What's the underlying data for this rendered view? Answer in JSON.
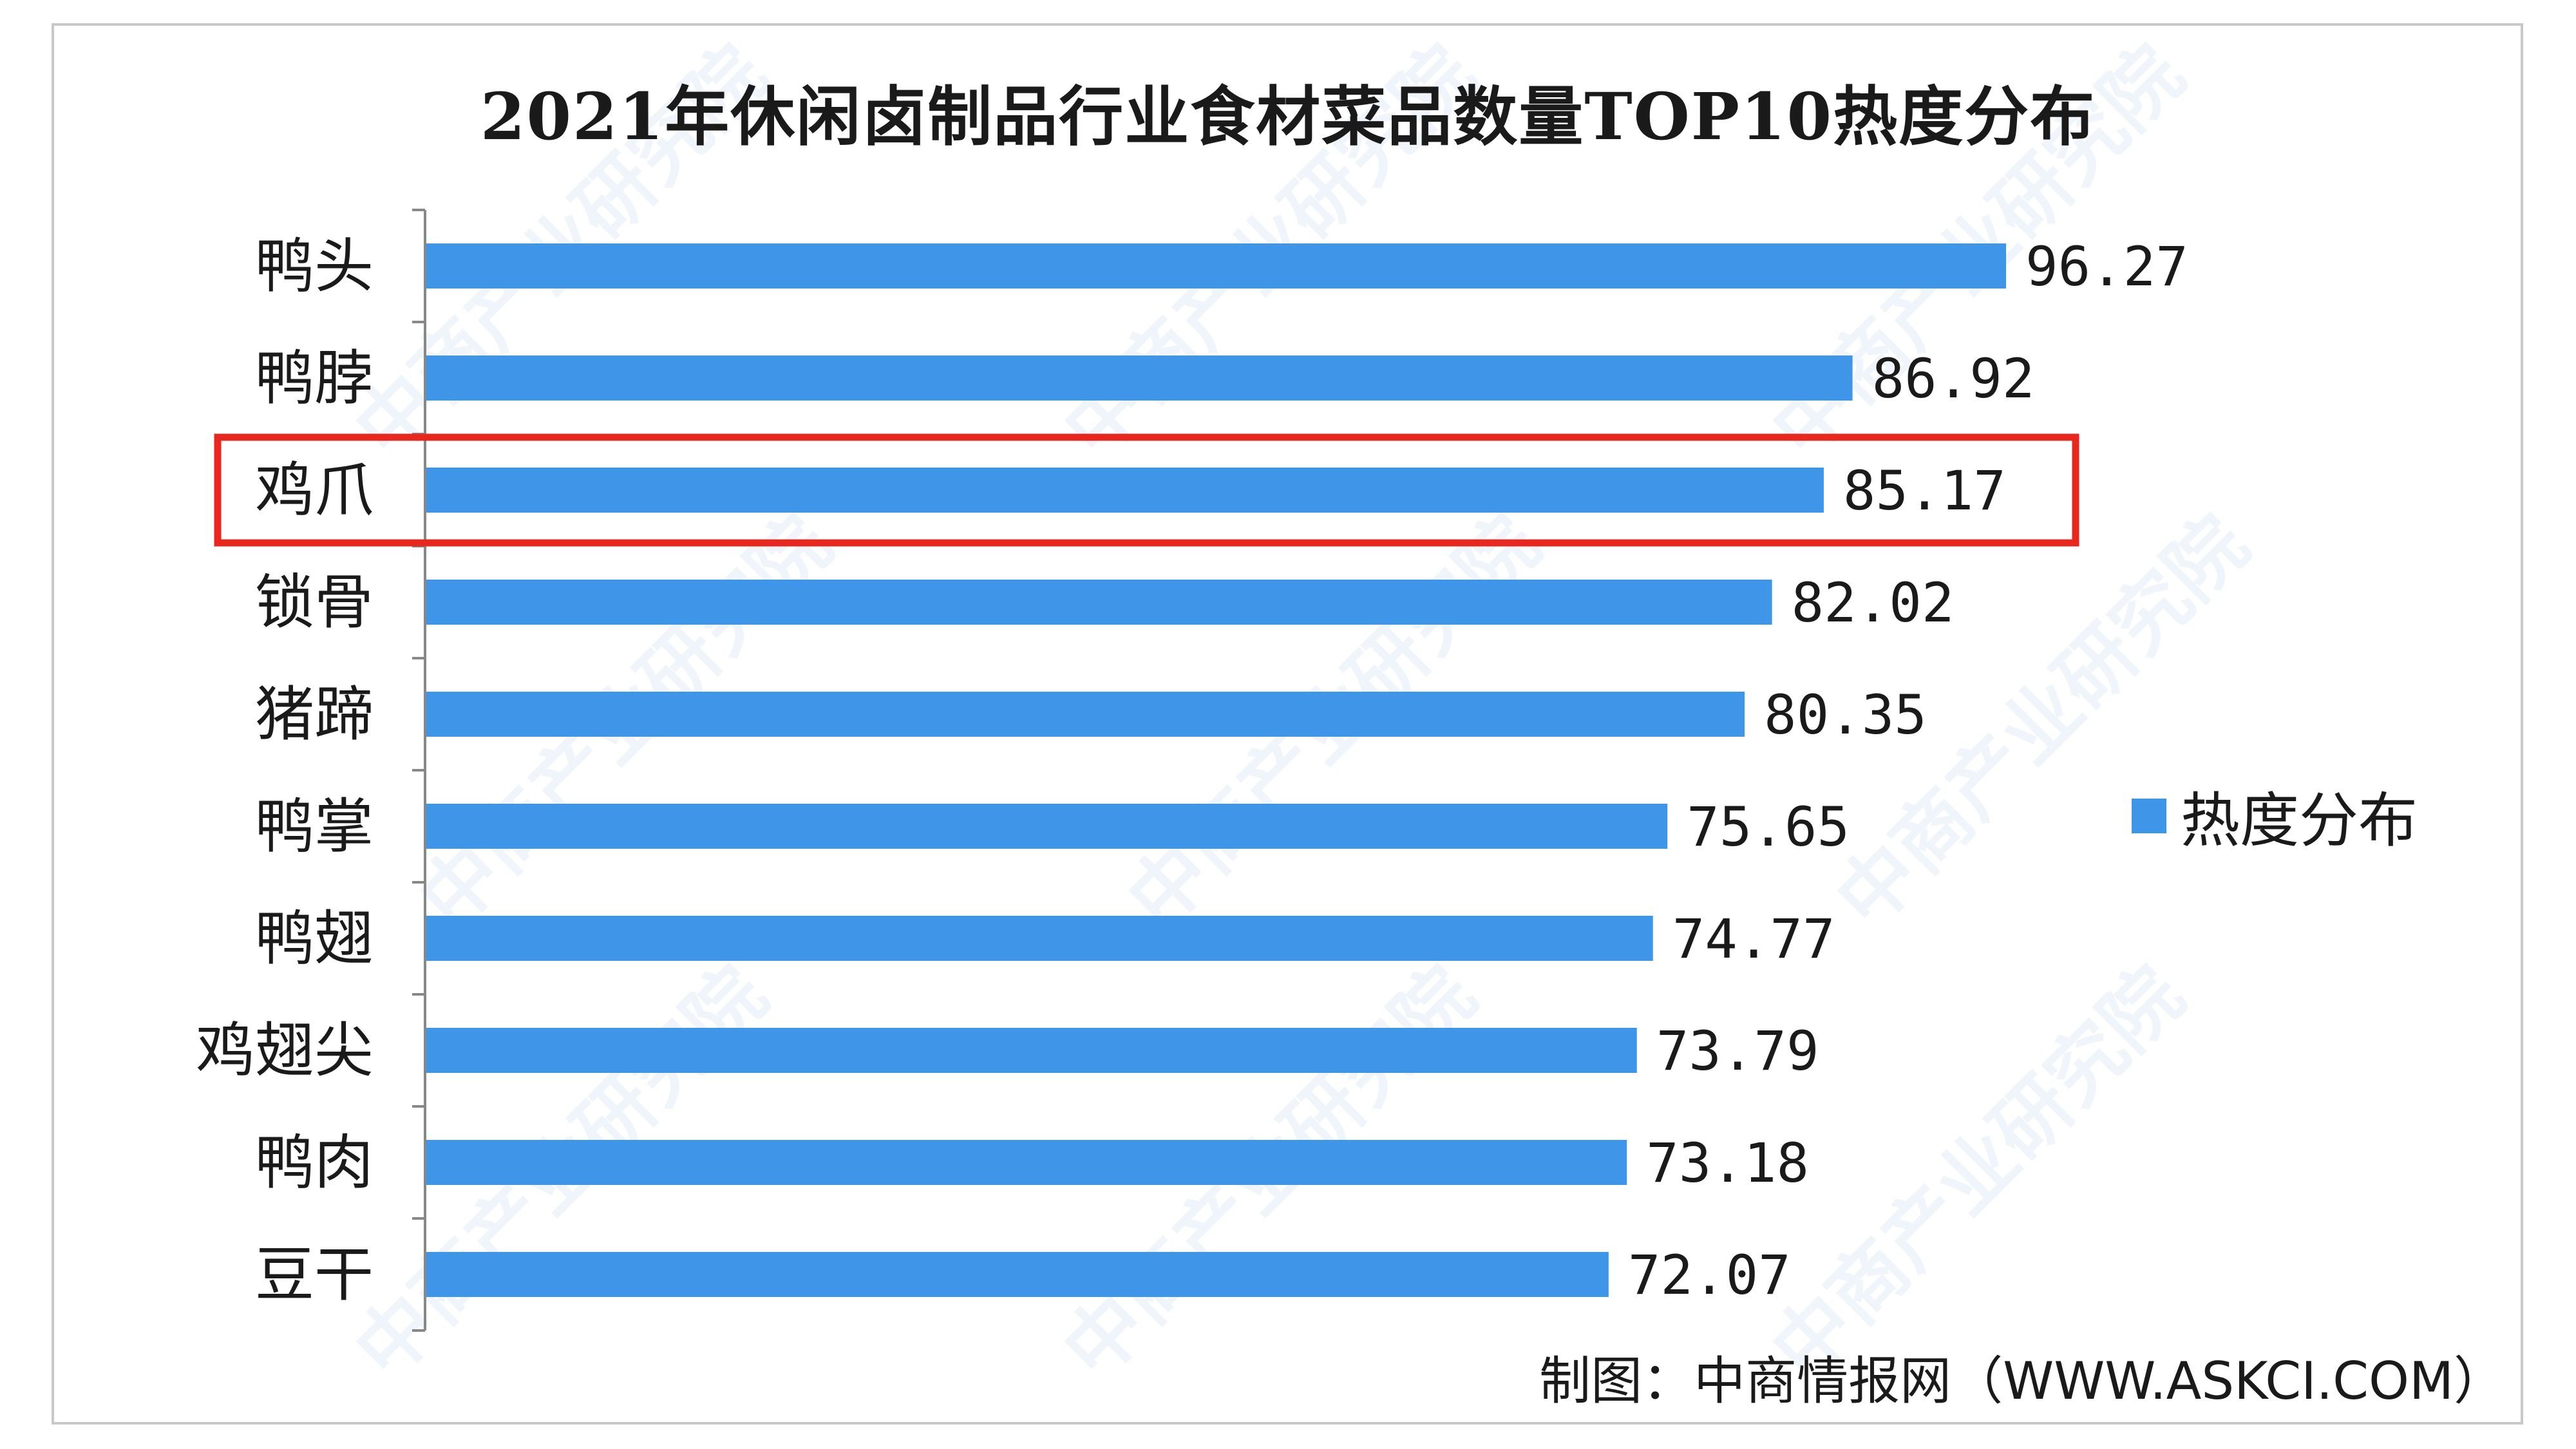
{
  "title": "2021年休闲卤制品行业食材菜品数量TOP10热度分布",
  "legend": {
    "label": "热度分布"
  },
  "source": "制图：中商情报网（WWW.ASKCI.COM）",
  "watermark": "中商产业研究院",
  "colors": {
    "bar": "#3f96e8",
    "highlight": "#e8271e",
    "axis": "#888888"
  },
  "chart_data": {
    "type": "bar",
    "orientation": "horizontal",
    "categories": [
      "鸭头",
      "鸭脖",
      "鸡爪",
      "锁骨",
      "猪蹄",
      "鸭掌",
      "鸭翅",
      "鸡翅尖",
      "鸭肉",
      "豆干"
    ],
    "value_labels": [
      "96.27",
      "86.92",
      "85.17",
      "82.02",
      "80.35",
      "75.65",
      "74.77",
      "73.79",
      "73.18",
      "72.07"
    ],
    "series": [
      {
        "name": "热度分布",
        "values": [
          96.27,
          86.92,
          85.17,
          82.02,
          80.35,
          75.65,
          74.77,
          73.79,
          73.18,
          72.07
        ]
      }
    ],
    "highlighted_category": "鸡爪",
    "xlim": [
      0,
      110
    ],
    "grid": false,
    "legend_position": "right"
  }
}
